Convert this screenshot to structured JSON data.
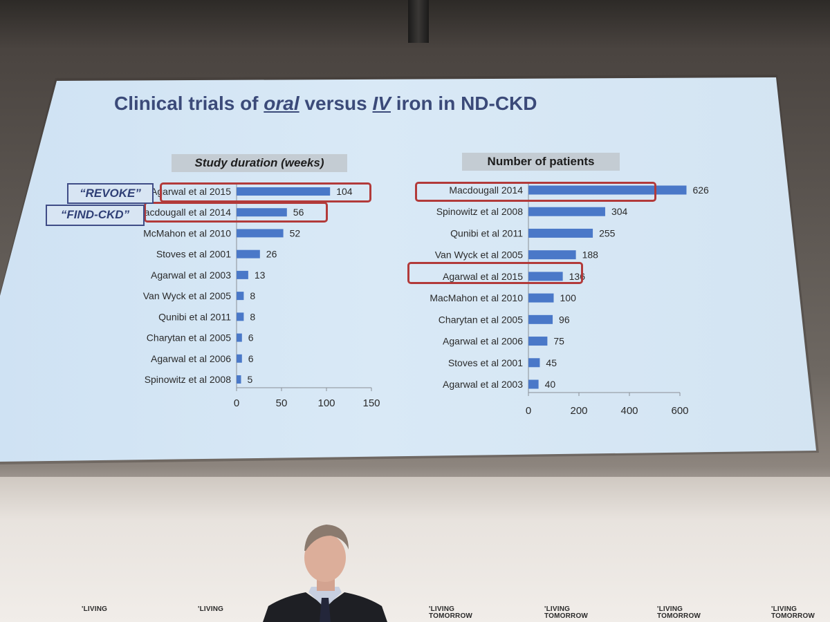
{
  "slide": {
    "title_parts": [
      "Clinical trials of ",
      "oral",
      " versus ",
      "IV",
      " iron in ND-CKD"
    ],
    "callouts": [
      "“REVOKE”",
      "“FIND-CKD”"
    ],
    "highlight_color": "#b23a3a",
    "bar_color": "#4a78c8"
  },
  "footer": {
    "logos": [
      "'LIVING",
      "'LIVING",
      "'LIVING TOMORROW",
      "'LIVING TOMORROW",
      "'LIVING TOMORROW",
      "'LIVING TOMORROW"
    ]
  },
  "chart_data": [
    {
      "type": "bar",
      "orientation": "horizontal",
      "title": "Study duration (weeks)",
      "categories": [
        "Agarwal et al 2015",
        "Macdougall et al 2014",
        "McMahon et al 2010",
        "Stoves et al 2001",
        "Agarwal et al 2003",
        "Van Wyck et al 2005",
        "Qunibi et al 2011",
        "Charytan et al 2005",
        "Agarwal et al 2006",
        "Spinowitz et al 2008"
      ],
      "values": [
        104,
        56,
        52,
        26,
        13,
        8,
        8,
        6,
        6,
        5
      ],
      "xlim": [
        0,
        150
      ],
      "xticks": [
        0,
        50,
        100,
        150
      ],
      "highlighted": [
        "Agarwal et al 2015",
        "Macdougall et al 2014"
      ]
    },
    {
      "type": "bar",
      "orientation": "horizontal",
      "title": "Number of patients",
      "categories": [
        "Macdougall 2014",
        "Spinowitz et al 2008",
        "Qunibi et al 2011",
        "Van Wyck et al 2005",
        "Agarwal et al 2015",
        "MacMahon et al 2010",
        "Charytan et al 2005",
        "Agarwal et al 2006",
        "Stoves et al 2001",
        "Agarwal et al 2003"
      ],
      "values": [
        626,
        304,
        255,
        188,
        136,
        100,
        96,
        75,
        45,
        40
      ],
      "xlim": [
        0,
        600
      ],
      "xticks": [
        0,
        200,
        400,
        600
      ],
      "highlighted": [
        "Macdougall 2014",
        "Agarwal et al 2015"
      ]
    }
  ]
}
